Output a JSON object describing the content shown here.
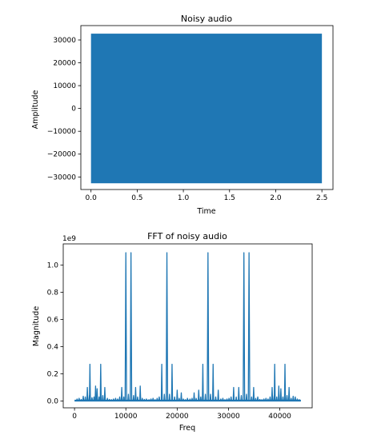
{
  "colors": {
    "series": "#1f77b4"
  },
  "chart_data": [
    {
      "type": "area",
      "title": "Noisy audio",
      "xlabel": "Time",
      "ylabel": "Amplitude",
      "xlim": [
        -0.11,
        2.62
      ],
      "ylim": [
        -35500,
        36300
      ],
      "xticks": [
        0.0,
        0.5,
        1.0,
        1.5,
        2.0,
        2.5
      ],
      "xtick_labels": [
        "0.0",
        "0.5",
        "1.0",
        "1.5",
        "2.0",
        "2.5"
      ],
      "yticks": [
        30000,
        20000,
        10000,
        0,
        -10000,
        -20000,
        -30000
      ],
      "ytick_labels": [
        "30000",
        "20000",
        "10000",
        "0",
        "−10000",
        "−20000",
        "−30000"
      ],
      "series": [
        {
          "x": [
            0.0,
            2.5
          ],
          "y_max": 32767,
          "y_min": -32768
        }
      ]
    },
    {
      "type": "line",
      "title": "FFT of noisy audio",
      "xlabel": "Freq",
      "ylabel": "Magnitude",
      "y_scale_label": "1e9",
      "xlim": [
        -2200,
        46300
      ],
      "ylim": [
        -0.05,
        1.155
      ],
      "xticks": [
        0,
        10000,
        20000,
        30000,
        40000
      ],
      "xtick_labels": [
        "0",
        "10000",
        "20000",
        "30000",
        "40000"
      ],
      "yticks": [
        0.0,
        0.2,
        0.4,
        0.6,
        0.8,
        1.0
      ],
      "ytick_labels": [
        "0.0",
        "0.2",
        "0.4",
        "0.6",
        "0.8",
        "1.0"
      ],
      "baseline": {
        "x_start": 0,
        "x_end": 44100,
        "value": 0.003
      },
      "peaks": [
        {
          "x": 500,
          "y": 0.015
        },
        {
          "x": 900,
          "y": 0.02
        },
        {
          "x": 1300,
          "y": 0.012
        },
        {
          "x": 1700,
          "y": 0.035
        },
        {
          "x": 2100,
          "y": 0.03
        },
        {
          "x": 2500,
          "y": 0.1
        },
        {
          "x": 2900,
          "y": 0.04
        },
        {
          "x": 3000,
          "y": 0.27
        },
        {
          "x": 3400,
          "y": 0.025
        },
        {
          "x": 3800,
          "y": 0.03
        },
        {
          "x": 4100,
          "y": 0.11
        },
        {
          "x": 4400,
          "y": 0.09
        },
        {
          "x": 4800,
          "y": 0.03
        },
        {
          "x": 5100,
          "y": 0.27
        },
        {
          "x": 5500,
          "y": 0.04
        },
        {
          "x": 5900,
          "y": 0.1
        },
        {
          "x": 6400,
          "y": 0.02
        },
        {
          "x": 6800,
          "y": 0.012
        },
        {
          "x": 7200,
          "y": 0.01
        },
        {
          "x": 7600,
          "y": 0.015
        },
        {
          "x": 8000,
          "y": 0.02
        },
        {
          "x": 8400,
          "y": 0.015
        },
        {
          "x": 8800,
          "y": 0.03
        },
        {
          "x": 9200,
          "y": 0.1
        },
        {
          "x": 9600,
          "y": 0.03
        },
        {
          "x": 10000,
          "y": 1.09
        },
        {
          "x": 10500,
          "y": 0.05
        },
        {
          "x": 11000,
          "y": 1.09
        },
        {
          "x": 11500,
          "y": 0.04
        },
        {
          "x": 11900,
          "y": 0.1
        },
        {
          "x": 12300,
          "y": 0.03
        },
        {
          "x": 12800,
          "y": 0.11
        },
        {
          "x": 13200,
          "y": 0.02
        },
        {
          "x": 13600,
          "y": 0.012
        },
        {
          "x": 14000,
          "y": 0.015
        },
        {
          "x": 14500,
          "y": 0.01
        },
        {
          "x": 14900,
          "y": 0.015
        },
        {
          "x": 15300,
          "y": 0.02
        },
        {
          "x": 15700,
          "y": 0.01
        },
        {
          "x": 16100,
          "y": 0.02
        },
        {
          "x": 16500,
          "y": 0.03
        },
        {
          "x": 17000,
          "y": 0.27
        },
        {
          "x": 17500,
          "y": 0.05
        },
        {
          "x": 18000,
          "y": 1.09
        },
        {
          "x": 18500,
          "y": 0.05
        },
        {
          "x": 19000,
          "y": 0.27
        },
        {
          "x": 19500,
          "y": 0.03
        },
        {
          "x": 20000,
          "y": 0.08
        },
        {
          "x": 20400,
          "y": 0.02
        },
        {
          "x": 20800,
          "y": 0.06
        },
        {
          "x": 21200,
          "y": 0.015
        },
        {
          "x": 21600,
          "y": 0.01
        },
        {
          "x": 22000,
          "y": 0.02
        },
        {
          "x": 22500,
          "y": 0.015
        },
        {
          "x": 22900,
          "y": 0.02
        },
        {
          "x": 23300,
          "y": 0.06
        },
        {
          "x": 23700,
          "y": 0.02
        },
        {
          "x": 24200,
          "y": 0.08
        },
        {
          "x": 24600,
          "y": 0.03
        },
        {
          "x": 25000,
          "y": 0.27
        },
        {
          "x": 25500,
          "y": 0.05
        },
        {
          "x": 26000,
          "y": 1.09
        },
        {
          "x": 26500,
          "y": 0.05
        },
        {
          "x": 27000,
          "y": 0.27
        },
        {
          "x": 27500,
          "y": 0.03
        },
        {
          "x": 28000,
          "y": 0.08
        },
        {
          "x": 28500,
          "y": 0.015
        },
        {
          "x": 28900,
          "y": 0.02
        },
        {
          "x": 29300,
          "y": 0.01
        },
        {
          "x": 29700,
          "y": 0.015
        },
        {
          "x": 30100,
          "y": 0.02
        },
        {
          "x": 30500,
          "y": 0.03
        },
        {
          "x": 31000,
          "y": 0.1
        },
        {
          "x": 31500,
          "y": 0.03
        },
        {
          "x": 32000,
          "y": 0.1
        },
        {
          "x": 32500,
          "y": 0.04
        },
        {
          "x": 33000,
          "y": 1.09
        },
        {
          "x": 33500,
          "y": 0.05
        },
        {
          "x": 34000,
          "y": 1.09
        },
        {
          "x": 34500,
          "y": 0.03
        },
        {
          "x": 34900,
          "y": 0.1
        },
        {
          "x": 35300,
          "y": 0.02
        },
        {
          "x": 35700,
          "y": 0.03
        },
        {
          "x": 36100,
          "y": 0.012
        },
        {
          "x": 36500,
          "y": 0.01
        },
        {
          "x": 36900,
          "y": 0.015
        },
        {
          "x": 37300,
          "y": 0.02
        },
        {
          "x": 37700,
          "y": 0.015
        },
        {
          "x": 38100,
          "y": 0.03
        },
        {
          "x": 38500,
          "y": 0.1
        },
        {
          "x": 38900,
          "y": 0.04
        },
        {
          "x": 39000,
          "y": 0.27
        },
        {
          "x": 39400,
          "y": 0.03
        },
        {
          "x": 39800,
          "y": 0.11
        },
        {
          "x": 40200,
          "y": 0.09
        },
        {
          "x": 40600,
          "y": 0.03
        },
        {
          "x": 41000,
          "y": 0.27
        },
        {
          "x": 41400,
          "y": 0.04
        },
        {
          "x": 41800,
          "y": 0.1
        },
        {
          "x": 42200,
          "y": 0.02
        },
        {
          "x": 42600,
          "y": 0.035
        },
        {
          "x": 43000,
          "y": 0.03
        },
        {
          "x": 43400,
          "y": 0.015
        },
        {
          "x": 43800,
          "y": 0.01
        }
      ]
    }
  ]
}
